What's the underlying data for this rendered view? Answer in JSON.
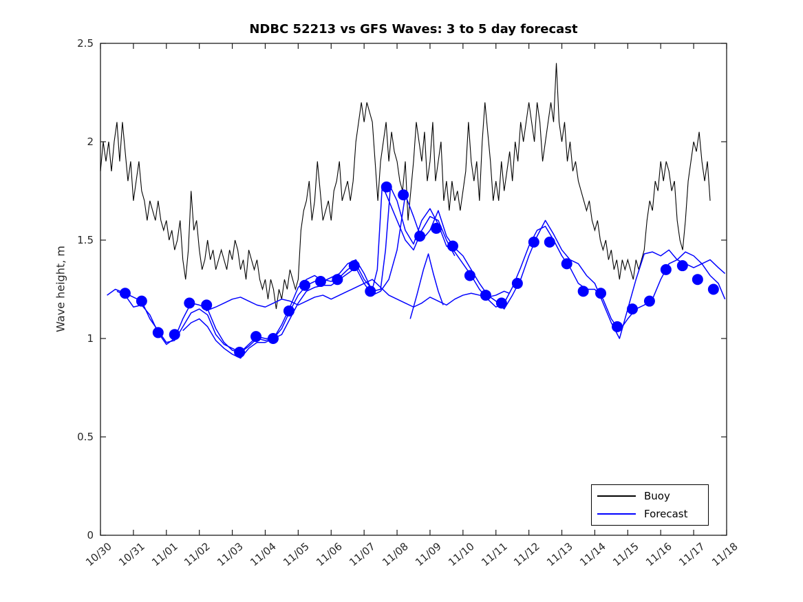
{
  "title": "NDBC 52213 vs GFS Waves: 3 to 5 day forecast",
  "ylabel": "Wave height, m",
  "legend": {
    "items": [
      {
        "label": "Buoy",
        "color": "#000000"
      },
      {
        "label": "Forecast",
        "color": "#0000ff"
      }
    ],
    "position": "lower right"
  },
  "chart_data": {
    "type": "line",
    "title": "NDBC 52213 vs GFS Waves: 3 to 5 day forecast",
    "xlabel": "",
    "ylabel": "Wave height, m",
    "ylim": [
      0,
      2.5
    ],
    "yticks": [
      0,
      0.5,
      1,
      1.5,
      2,
      2.5
    ],
    "ytick_labels": [
      "0",
      "0.5",
      "1",
      "1.5",
      "2",
      "2.5"
    ],
    "xtick_labels": [
      "10/30",
      "10/31",
      "11/01",
      "11/02",
      "11/03",
      "11/04",
      "11/05",
      "11/06",
      "11/07",
      "11/08",
      "11/09",
      "11/10",
      "11/11",
      "11/12",
      "11/13",
      "11/14",
      "11/15",
      "11/16",
      "11/17",
      "11/18"
    ],
    "x_days_range": [
      0,
      19
    ],
    "grid": false,
    "legend_position": "lower right",
    "colors": {
      "buoy": "#000000",
      "forecast": "#0000ff",
      "axes": "#1a1a1a",
      "tick_text": "#262626"
    },
    "series": {
      "buoy": {
        "name": "Buoy",
        "color": "#000000",
        "t0_days": 0,
        "dt_days": 0.083333,
        "values": [
          1.85,
          2.0,
          1.9,
          2.0,
          1.85,
          2.0,
          2.1,
          1.9,
          2.1,
          1.95,
          1.8,
          1.9,
          1.7,
          1.8,
          1.9,
          1.75,
          1.7,
          1.6,
          1.7,
          1.65,
          1.6,
          1.7,
          1.6,
          1.55,
          1.6,
          1.5,
          1.55,
          1.45,
          1.5,
          1.6,
          1.4,
          1.3,
          1.45,
          1.75,
          1.55,
          1.6,
          1.45,
          1.35,
          1.4,
          1.5,
          1.4,
          1.45,
          1.35,
          1.4,
          1.45,
          1.4,
          1.35,
          1.45,
          1.4,
          1.5,
          1.45,
          1.35,
          1.4,
          1.3,
          1.45,
          1.4,
          1.35,
          1.4,
          1.3,
          1.25,
          1.3,
          1.2,
          1.3,
          1.25,
          1.15,
          1.25,
          1.2,
          1.3,
          1.25,
          1.35,
          1.3,
          1.25,
          1.3,
          1.55,
          1.65,
          1.7,
          1.8,
          1.6,
          1.7,
          1.9,
          1.75,
          1.6,
          1.65,
          1.7,
          1.6,
          1.75,
          1.8,
          1.9,
          1.7,
          1.75,
          1.8,
          1.7,
          1.8,
          2.0,
          2.1,
          2.2,
          2.1,
          2.2,
          2.15,
          2.1,
          1.9,
          1.7,
          1.9,
          2.0,
          2.1,
          1.9,
          2.05,
          1.95,
          1.9,
          1.8,
          1.75,
          1.9,
          1.6,
          1.75,
          1.9,
          2.1,
          2.0,
          1.9,
          2.05,
          1.8,
          1.9,
          2.1,
          1.8,
          1.9,
          2.0,
          1.7,
          1.8,
          1.65,
          1.8,
          1.7,
          1.75,
          1.65,
          1.75,
          1.85,
          2.1,
          1.9,
          1.8,
          1.9,
          1.7,
          2.0,
          2.2,
          2.05,
          1.9,
          1.7,
          1.8,
          1.7,
          1.9,
          1.75,
          1.85,
          1.95,
          1.8,
          2.0,
          1.9,
          2.1,
          2.0,
          2.1,
          2.2,
          2.1,
          2.0,
          2.2,
          2.1,
          1.9,
          2.0,
          2.1,
          2.2,
          2.1,
          2.4,
          2.1,
          2.0,
          2.1,
          1.9,
          2.0,
          1.85,
          1.9,
          1.8,
          1.75,
          1.7,
          1.65,
          1.7,
          1.6,
          1.55,
          1.6,
          1.5,
          1.45,
          1.5,
          1.4,
          1.45,
          1.35,
          1.4,
          1.3,
          1.4,
          1.35,
          1.4,
          1.35,
          1.3,
          1.4,
          1.35,
          1.4,
          1.45,
          1.6,
          1.7,
          1.65,
          1.8,
          1.75,
          1.9,
          1.8,
          1.9,
          1.85,
          1.75,
          1.8,
          1.6,
          1.5,
          1.45,
          1.6,
          1.8,
          1.9,
          2.0,
          1.95,
          2.05,
          1.9,
          1.8,
          1.9,
          1.7
        ]
      },
      "forecast_runs": [
        {
          "x": [
            0.2,
            0.45,
            0.75,
            1.0,
            1.25,
            1.5,
            1.75,
            2.0,
            2.25,
            2.5,
            2.75,
            3.0,
            3.25,
            3.5,
            3.75,
            4.0,
            4.25,
            4.5,
            4.75,
            5.0,
            5.25,
            5.5,
            5.75,
            6.0,
            6.25,
            6.5,
            6.75,
            7.0,
            7.25,
            7.5,
            7.75,
            8.0,
            8.25,
            8.4,
            8.55,
            8.7,
            9.0,
            9.25,
            9.5,
            9.75,
            10.0,
            10.25,
            10.5,
            10.75
          ],
          "y": [
            1.22,
            1.25,
            1.23,
            1.21,
            1.19,
            1.1,
            1.04,
            0.98,
            0.99,
            1.06,
            1.13,
            1.15,
            1.12,
            1.02,
            0.97,
            0.95,
            0.93,
            0.97,
            1.01,
            1.0,
            1.0,
            1.05,
            1.14,
            1.22,
            1.27,
            1.29,
            1.3,
            1.29,
            1.31,
            1.35,
            1.38,
            1.3,
            1.25,
            1.35,
            1.78,
            1.72,
            1.6,
            1.5,
            1.45,
            1.55,
            1.62,
            1.6,
            1.5,
            1.42
          ]
        },
        {
          "x": [
            0.5,
            0.75,
            1.0,
            1.25,
            1.5,
            1.75,
            2.0,
            2.25,
            2.5,
            2.75,
            3.0,
            3.25,
            3.5,
            3.75,
            4.0,
            4.25,
            4.5,
            4.75,
            5.0,
            5.25,
            5.5,
            5.75,
            6.0,
            6.25,
            6.5,
            6.75,
            7.0,
            7.25,
            7.5,
            7.75,
            8.0,
            8.25,
            8.5,
            8.65,
            8.8,
            9.0,
            9.25,
            9.5,
            9.75,
            10.0,
            10.25,
            10.5,
            10.75,
            11.0,
            11.25,
            11.5,
            11.75,
            12.0,
            12.25,
            12.5,
            12.75,
            13.0,
            13.25,
            13.5,
            13.75,
            14.0,
            14.25,
            14.5,
            14.75,
            15.0,
            15.25,
            15.5,
            15.75,
            16.0,
            16.25,
            16.5,
            16.75,
            17.0,
            17.25,
            17.5,
            17.75,
            18.0,
            18.25,
            18.5,
            18.75,
            18.95
          ],
          "y": [
            1.24,
            1.22,
            1.16,
            1.17,
            1.12,
            1.03,
            0.97,
            1.0,
            1.1,
            1.18,
            1.17,
            1.15,
            1.05,
            0.98,
            0.94,
            0.93,
            0.96,
            1.0,
            0.99,
            1.0,
            1.07,
            1.16,
            1.26,
            1.3,
            1.32,
            1.29,
            1.31,
            1.33,
            1.38,
            1.4,
            1.33,
            1.24,
            1.25,
            1.45,
            1.77,
            1.7,
            1.55,
            1.48,
            1.6,
            1.66,
            1.58,
            1.47,
            1.44,
            1.38,
            1.32,
            1.25,
            1.2,
            1.16,
            1.18,
            1.26,
            1.36,
            1.47,
            1.55,
            1.57,
            1.5,
            1.42,
            1.36,
            1.28,
            1.25,
            1.25,
            1.2,
            1.1,
            1.04,
            1.1,
            1.15,
            1.17,
            1.2,
            1.3,
            1.38,
            1.4,
            1.38,
            1.36,
            1.38,
            1.32,
            1.28,
            1.2
          ]
        },
        {
          "x": [
            2.5,
            2.75,
            3.0,
            3.25,
            3.5,
            3.75,
            4.0,
            4.25,
            4.5,
            4.75,
            5.0,
            5.25,
            5.5,
            5.75,
            6.0,
            6.25,
            6.5,
            6.75,
            7.0,
            7.25,
            7.5,
            7.75,
            8.0,
            8.25,
            8.5,
            8.75,
            9.0,
            9.25,
            9.5,
            9.75,
            10.0,
            10.25,
            10.5,
            10.75,
            11.0,
            11.25,
            11.5,
            11.75,
            12.0,
            12.25,
            12.5,
            12.75,
            13.0,
            13.25,
            13.5,
            13.75,
            14.0,
            14.25,
            14.5,
            14.75,
            15.0,
            15.25,
            15.5,
            15.75,
            16.0,
            16.25,
            16.5,
            16.75,
            17.0,
            17.25,
            17.5,
            17.75,
            18.0,
            18.25,
            18.5,
            18.75,
            18.95
          ],
          "y": [
            1.04,
            1.08,
            1.1,
            1.06,
            0.99,
            0.95,
            0.92,
            0.9,
            0.95,
            0.98,
            0.98,
            1.0,
            1.02,
            1.1,
            1.18,
            1.24,
            1.26,
            1.27,
            1.27,
            1.3,
            1.33,
            1.36,
            1.28,
            1.22,
            1.24,
            1.3,
            1.45,
            1.73,
            1.62,
            1.5,
            1.55,
            1.65,
            1.52,
            1.46,
            1.42,
            1.35,
            1.28,
            1.22,
            1.19,
            1.15,
            1.22,
            1.3,
            1.42,
            1.52,
            1.6,
            1.53,
            1.45,
            1.4,
            1.38,
            1.32,
            1.28,
            1.18,
            1.08,
            1.0,
            1.15,
            1.3,
            1.43,
            1.44,
            1.42,
            1.45,
            1.4,
            1.44,
            1.42,
            1.38,
            1.4,
            1.36,
            1.33
          ]
        },
        {
          "x": [
            3.2,
            3.5,
            3.75,
            4.0,
            4.25,
            4.5,
            4.75,
            5.0,
            5.25,
            5.5,
            5.75,
            6.0,
            6.25,
            6.5,
            6.75,
            7.0,
            7.25,
            7.5,
            7.75,
            8.0,
            8.25,
            8.5,
            8.75,
            9.0,
            9.25,
            9.5,
            9.75,
            10.0,
            10.25,
            10.5,
            10.75,
            11.0,
            11.25,
            11.5,
            11.75,
            12.0,
            12.25,
            12.4
          ],
          "y": [
            1.14,
            1.16,
            1.18,
            1.2,
            1.21,
            1.19,
            1.17,
            1.16,
            1.18,
            1.2,
            1.19,
            1.17,
            1.19,
            1.21,
            1.22,
            1.2,
            1.22,
            1.24,
            1.26,
            1.28,
            1.3,
            1.26,
            1.22,
            1.2,
            1.18,
            1.16,
            1.18,
            1.21,
            1.19,
            1.17,
            1.2,
            1.22,
            1.23,
            1.22,
            1.21,
            1.22,
            1.24,
            1.23
          ]
        },
        {
          "x": [
            9.4,
            9.6,
            9.8,
            9.95,
            10.1,
            10.25,
            10.4
          ],
          "y": [
            1.1,
            1.22,
            1.35,
            1.43,
            1.33,
            1.24,
            1.17
          ]
        }
      ],
      "forecast_markers": {
        "name": "Forecast analysis points",
        "color": "#0000ff",
        "radius": 8,
        "x": [
          0.75,
          1.25,
          1.75,
          2.25,
          2.7,
          3.22,
          4.22,
          4.72,
          5.24,
          5.72,
          6.2,
          6.68,
          7.19,
          7.7,
          8.19,
          8.68,
          9.19,
          9.69,
          10.19,
          10.69,
          11.21,
          11.69,
          12.17,
          12.65,
          13.15,
          13.63,
          14.15,
          14.65,
          15.18,
          15.68,
          16.14,
          16.66,
          17.16,
          17.66,
          18.12,
          18.6
        ],
        "y": [
          1.23,
          1.19,
          1.03,
          1.02,
          1.18,
          1.17,
          0.93,
          1.01,
          1.0,
          1.14,
          1.27,
          1.29,
          1.3,
          1.37,
          1.24,
          1.77,
          1.73,
          1.52,
          1.56,
          1.47,
          1.32,
          1.22,
          1.18,
          1.28,
          1.49,
          1.49,
          1.38,
          1.24,
          1.23,
          1.06,
          1.15,
          1.19,
          1.35,
          1.37,
          1.3,
          1.25
        ]
      }
    },
    "legend": [
      "Buoy",
      "Forecast"
    ]
  }
}
